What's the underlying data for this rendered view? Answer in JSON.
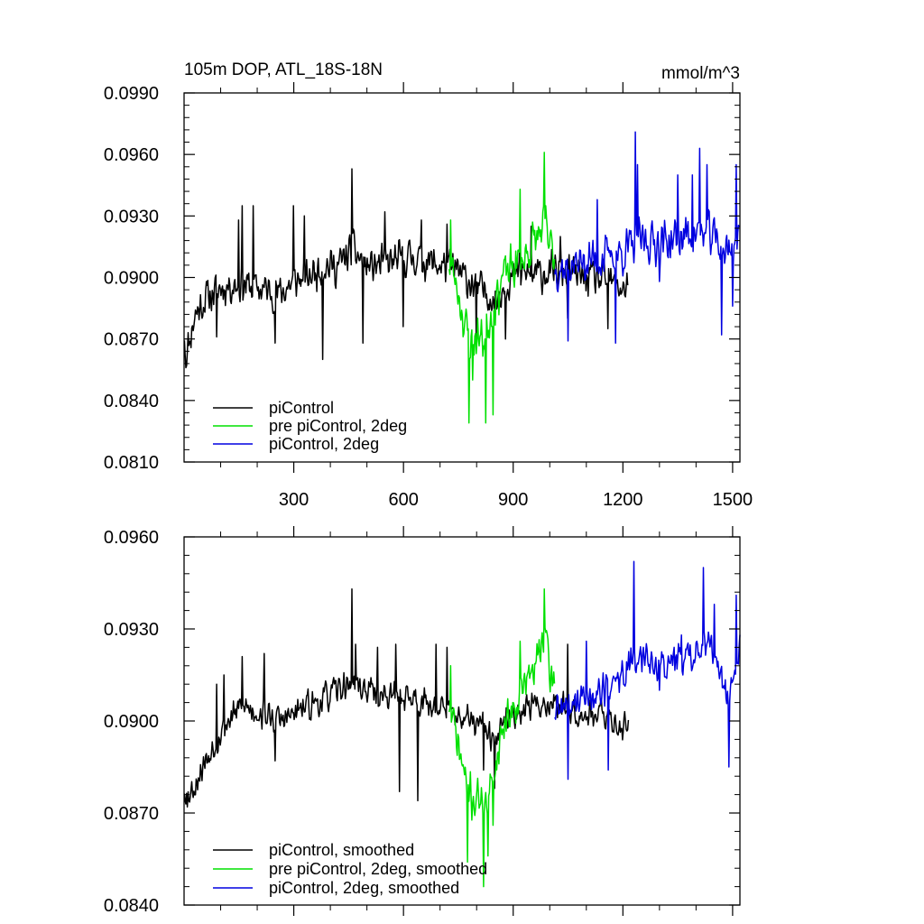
{
  "figure": {
    "background": "#ffffff"
  },
  "chart_data": [
    {
      "type": "line",
      "title": "105m DOP, ATL_18S-18N",
      "units": "mmol/m^3",
      "xlim": [
        0,
        1520
      ],
      "ylim": [
        0.081,
        0.099
      ],
      "x_ticks": [
        300,
        600,
        900,
        1200,
        1500
      ],
      "x_tick_labels": [
        "300",
        "600",
        "900",
        "1200",
        "1500"
      ],
      "y_ticks": [
        0.081,
        0.084,
        0.087,
        0.09,
        0.093,
        0.096,
        0.099
      ],
      "y_tick_labels": [
        "0.0810",
        "0.0840",
        "0.0870",
        "0.0900",
        "0.0930",
        "0.0960",
        "0.0990"
      ],
      "grid": false,
      "legend_position": "bottom-left",
      "series": [
        {
          "name": "piControl",
          "color": "#000000",
          "x_start": 1,
          "x_end": 1216,
          "knots": [
            [
              0,
              0.0875
            ],
            [
              5,
              0.0862
            ],
            [
              30,
              0.0882
            ],
            [
              60,
              0.089
            ],
            [
              100,
              0.0895
            ],
            [
              150,
              0.0897
            ],
            [
              200,
              0.0895
            ],
            [
              260,
              0.0892
            ],
            [
              300,
              0.0898
            ],
            [
              340,
              0.09
            ],
            [
              380,
              0.0906
            ],
            [
              420,
              0.0905
            ],
            [
              460,
              0.0914
            ],
            [
              500,
              0.0905
            ],
            [
              560,
              0.0907
            ],
            [
              620,
              0.091
            ],
            [
              660,
              0.0908
            ],
            [
              700,
              0.0906
            ],
            [
              740,
              0.0904
            ],
            [
              780,
              0.0898
            ],
            [
              800,
              0.0895
            ],
            [
              830,
              0.0893
            ],
            [
              850,
              0.0888
            ],
            [
              880,
              0.0898
            ],
            [
              920,
              0.0902
            ],
            [
              960,
              0.0901
            ],
            [
              1000,
              0.0903
            ],
            [
              1050,
              0.0902
            ],
            [
              1100,
              0.09
            ],
            [
              1160,
              0.0898
            ],
            [
              1200,
              0.0895
            ],
            [
              1216,
              0.0897
            ]
          ],
          "noise_amplitude": 0.0011,
          "spikes": [
            [
              5,
              0.0856
            ],
            [
              90,
              0.0871
            ],
            [
              150,
              0.0928
            ],
            [
              160,
              0.0935
            ],
            [
              190,
              0.0935
            ],
            [
              250,
              0.0868
            ],
            [
              300,
              0.0935
            ],
            [
              330,
              0.093
            ],
            [
              380,
              0.086
            ],
            [
              460,
              0.0953
            ],
            [
              490,
              0.0868
            ],
            [
              550,
              0.0932
            ],
            [
              600,
              0.0876
            ],
            [
              650,
              0.0928
            ],
            [
              720,
              0.0926
            ],
            [
              800,
              0.0868
            ],
            [
              880,
              0.087
            ],
            [
              920,
              0.0922
            ],
            [
              950,
              0.0925
            ],
            [
              1030,
              0.092
            ],
            [
              1050,
              0.088
            ],
            [
              1160,
              0.0875
            ]
          ],
          "seed": 11
        },
        {
          "name": "pre piControl, 2deg",
          "color": "#00e000",
          "x_start": 725,
          "x_end": 1014,
          "knots": [
            [
              725,
              0.0908
            ],
            [
              750,
              0.0893
            ],
            [
              770,
              0.0875
            ],
            [
              785,
              0.0868
            ],
            [
              800,
              0.0872
            ],
            [
              820,
              0.087
            ],
            [
              835,
              0.088
            ],
            [
              850,
              0.0888
            ],
            [
              870,
              0.09
            ],
            [
              900,
              0.0905
            ],
            [
              930,
              0.091
            ],
            [
              960,
              0.0918
            ],
            [
              985,
              0.0925
            ],
            [
              1000,
              0.0915
            ],
            [
              1014,
              0.091
            ]
          ],
          "noise_amplitude": 0.0014,
          "spikes": [
            [
              730,
              0.0928
            ],
            [
              780,
              0.0829
            ],
            [
              790,
              0.085
            ],
            [
              825,
              0.0829
            ],
            [
              845,
              0.0833
            ],
            [
              920,
              0.0943
            ],
            [
              985,
              0.0961
            ],
            [
              990,
              0.0935
            ]
          ],
          "seed": 23
        },
        {
          "name": "piControl, 2deg",
          "color": "#0000e0",
          "x_start": 1014,
          "x_end": 1520,
          "knots": [
            [
              1014,
              0.0905
            ],
            [
              1050,
              0.0905
            ],
            [
              1100,
              0.0908
            ],
            [
              1150,
              0.091
            ],
            [
              1200,
              0.0912
            ],
            [
              1250,
              0.0918
            ],
            [
              1300,
              0.0917
            ],
            [
              1350,
              0.0919
            ],
            [
              1400,
              0.0922
            ],
            [
              1450,
              0.092
            ],
            [
              1480,
              0.0912
            ],
            [
              1520,
              0.092
            ]
          ],
          "noise_amplitude": 0.0013,
          "spikes": [
            [
              1050,
              0.0869
            ],
            [
              1130,
              0.0938
            ],
            [
              1180,
              0.0868
            ],
            [
              1235,
              0.0971
            ],
            [
              1240,
              0.0955
            ],
            [
              1300,
              0.0898
            ],
            [
              1350,
              0.095
            ],
            [
              1390,
              0.095
            ],
            [
              1410,
              0.0963
            ],
            [
              1430,
              0.0955
            ],
            [
              1470,
              0.0872
            ],
            [
              1500,
              0.0886
            ],
            [
              1510,
              0.0955
            ]
          ],
          "seed": 37
        }
      ]
    },
    {
      "type": "line",
      "title": "",
      "units": "",
      "xlim": [
        0,
        1520
      ],
      "ylim": [
        0.084,
        0.096
      ],
      "x_ticks": [
        300,
        600,
        900,
        1200,
        1500
      ],
      "x_tick_labels": [],
      "y_ticks": [
        0.084,
        0.087,
        0.09,
        0.093,
        0.096
      ],
      "y_tick_labels": [
        "0.0840",
        "0.0870",
        "0.0900",
        "0.0930",
        "0.0960"
      ],
      "grid": false,
      "legend_position": "bottom-left",
      "series": [
        {
          "name": "piControl, smoothed",
          "color": "#000000",
          "x_start": 1,
          "x_end": 1216,
          "knots": [
            [
              0,
              0.0878
            ],
            [
              20,
              0.0877
            ],
            [
              50,
              0.0885
            ],
            [
              80,
              0.0892
            ],
            [
              120,
              0.09
            ],
            [
              160,
              0.0905
            ],
            [
              200,
              0.0903
            ],
            [
              260,
              0.09
            ],
            [
              300,
              0.0902
            ],
            [
              340,
              0.0905
            ],
            [
              380,
              0.0907
            ],
            [
              420,
              0.091
            ],
            [
              460,
              0.0913
            ],
            [
              500,
              0.091
            ],
            [
              560,
              0.0908
            ],
            [
              620,
              0.0908
            ],
            [
              660,
              0.0906
            ],
            [
              700,
              0.0904
            ],
            [
              740,
              0.0902
            ],
            [
              780,
              0.09
            ],
            [
              820,
              0.0898
            ],
            [
              850,
              0.0892
            ],
            [
              880,
              0.09
            ],
            [
              920,
              0.0904
            ],
            [
              960,
              0.0905
            ],
            [
              1000,
              0.0906
            ],
            [
              1050,
              0.0904
            ],
            [
              1100,
              0.0903
            ],
            [
              1160,
              0.0901
            ],
            [
              1200,
              0.0898
            ],
            [
              1216,
              0.09
            ]
          ],
          "noise_amplitude": 0.0006,
          "spikes": [
            [
              10,
              0.0872
            ],
            [
              90,
              0.0912
            ],
            [
              110,
              0.0915
            ],
            [
              160,
              0.0921
            ],
            [
              220,
              0.0922
            ],
            [
              250,
              0.0887
            ],
            [
              460,
              0.0943
            ],
            [
              470,
              0.0925
            ],
            [
              530,
              0.0924
            ],
            [
              580,
              0.0925
            ],
            [
              590,
              0.0877
            ],
            [
              640,
              0.0874
            ],
            [
              690,
              0.0925
            ],
            [
              720,
              0.0924
            ],
            [
              820,
              0.0884
            ],
            [
              850,
              0.0878
            ],
            [
              1050,
              0.0925
            ]
          ],
          "seed": 53
        },
        {
          "name": "pre piControl, 2deg, smoothed",
          "color": "#00e000",
          "x_start": 725,
          "x_end": 1014,
          "knots": [
            [
              725,
              0.0905
            ],
            [
              750,
              0.0892
            ],
            [
              770,
              0.088
            ],
            [
              790,
              0.0874
            ],
            [
              810,
              0.0876
            ],
            [
              830,
              0.0872
            ],
            [
              850,
              0.0885
            ],
            [
              870,
              0.0898
            ],
            [
              900,
              0.0905
            ],
            [
              930,
              0.0912
            ],
            [
              960,
              0.0917
            ],
            [
              985,
              0.093
            ],
            [
              1000,
              0.0915
            ],
            [
              1014,
              0.0912
            ]
          ],
          "noise_amplitude": 0.0008,
          "spikes": [
            [
              730,
              0.0918
            ],
            [
              775,
              0.0854
            ],
            [
              820,
              0.0846
            ],
            [
              832,
              0.0856
            ],
            [
              845,
              0.0866
            ],
            [
              920,
              0.0926
            ],
            [
              985,
              0.0943
            ]
          ],
          "seed": 71
        },
        {
          "name": "piControl, 2deg, smoothed",
          "color": "#0000e0",
          "x_start": 1014,
          "x_end": 1520,
          "knots": [
            [
              1014,
              0.0903
            ],
            [
              1050,
              0.0905
            ],
            [
              1100,
              0.0908
            ],
            [
              1150,
              0.091
            ],
            [
              1200,
              0.0915
            ],
            [
              1250,
              0.0922
            ],
            [
              1300,
              0.0918
            ],
            [
              1350,
              0.092
            ],
            [
              1400,
              0.0922
            ],
            [
              1430,
              0.0925
            ],
            [
              1460,
              0.0918
            ],
            [
              1490,
              0.0905
            ],
            [
              1520,
              0.0925
            ]
          ],
          "noise_amplitude": 0.0007,
          "spikes": [
            [
              1050,
              0.0881
            ],
            [
              1100,
              0.0926
            ],
            [
              1160,
              0.0884
            ],
            [
              1230,
              0.0952
            ],
            [
              1300,
              0.091
            ],
            [
              1340,
              0.0924
            ],
            [
              1360,
              0.0928
            ],
            [
              1420,
              0.095
            ],
            [
              1450,
              0.0938
            ],
            [
              1490,
              0.0885
            ],
            [
              1510,
              0.0941
            ]
          ],
          "seed": 89
        }
      ]
    }
  ]
}
